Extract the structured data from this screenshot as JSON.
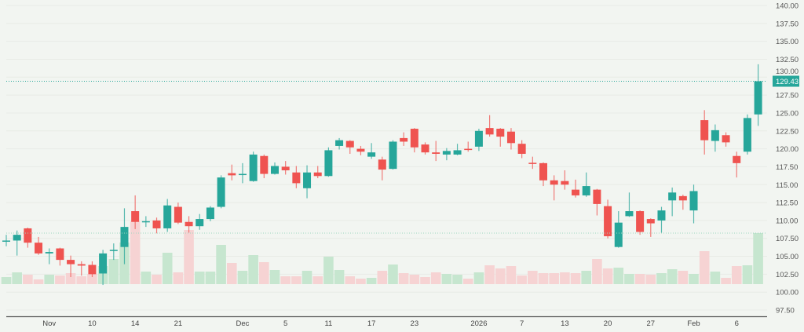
{
  "chart_data": {
    "type": "candlestick",
    "title": "",
    "xlabel": "",
    "ylabel": "",
    "ylim": [
      95.5,
      141
    ],
    "grid": true,
    "y_ticks": [
      "140.00",
      "137.50",
      "135.00",
      "132.50",
      "130.00",
      "127.50",
      "125.00",
      "122.50",
      "120.00",
      "117.50",
      "115.00",
      "112.50",
      "110.00",
      "107.50",
      "105.00",
      "102.50",
      "100.00",
      "97.50"
    ],
    "x_ticks": [
      {
        "label": "Nov",
        "index": 4
      },
      {
        "label": "10",
        "index": 8
      },
      {
        "label": "14",
        "index": 12
      },
      {
        "label": "21",
        "index": 16
      },
      {
        "label": "Dec",
        "index": 22
      },
      {
        "label": "5",
        "index": 26
      },
      {
        "label": "11",
        "index": 30
      },
      {
        "label": "17",
        "index": 34
      },
      {
        "label": "23",
        "index": 38
      },
      {
        "label": "2026",
        "index": 44
      },
      {
        "label": "7",
        "index": 48
      },
      {
        "label": "13",
        "index": 52
      },
      {
        "label": "20",
        "index": 56
      },
      {
        "label": "27",
        "index": 60
      },
      {
        "label": "Feb",
        "index": 64
      },
      {
        "label": "6",
        "index": 68
      }
    ],
    "ohlc_fields": [
      "open",
      "high",
      "low",
      "close"
    ],
    "candles": [
      [
        107.1,
        108.0,
        106.4,
        107.2
      ],
      [
        107.2,
        108.6,
        105.1,
        108.0
      ],
      [
        108.9,
        109.0,
        106.2,
        106.9
      ],
      [
        106.9,
        107.7,
        105.2,
        105.4
      ],
      [
        105.4,
        106.1,
        103.9,
        105.6
      ],
      [
        106.1,
        106.2,
        103.7,
        104.5
      ],
      [
        104.5,
        105.1,
        102.1,
        103.9
      ],
      [
        103.9,
        104.3,
        102.3,
        103.7
      ],
      [
        103.8,
        104.3,
        102.1,
        102.5
      ],
      [
        102.6,
        105.9,
        101.0,
        105.4
      ],
      [
        105.8,
        106.8,
        104.5,
        105.9
      ],
      [
        106.3,
        111.7,
        103.9,
        109.1
      ],
      [
        111.3,
        113.5,
        108.8,
        109.8
      ],
      [
        109.8,
        110.6,
        109.1,
        109.9
      ],
      [
        110.0,
        110.4,
        108.2,
        108.9
      ],
      [
        108.9,
        113.0,
        108.4,
        112.1
      ],
      [
        111.9,
        112.5,
        109.5,
        109.7
      ],
      [
        109.8,
        110.6,
        108.3,
        109.2
      ],
      [
        109.2,
        110.9,
        108.7,
        110.2
      ],
      [
        110.2,
        112.0,
        109.9,
        111.8
      ],
      [
        111.9,
        116.3,
        111.7,
        116.0
      ],
      [
        116.6,
        117.8,
        115.6,
        116.3
      ],
      [
        116.4,
        118.0,
        115.2,
        116.5
      ],
      [
        115.5,
        119.6,
        115.4,
        119.2
      ],
      [
        119.0,
        119.2,
        115.9,
        116.5
      ],
      [
        116.5,
        118.1,
        116.4,
        117.6
      ],
      [
        117.5,
        118.3,
        116.4,
        117.0
      ],
      [
        116.7,
        117.6,
        114.5,
        115.2
      ],
      [
        114.5,
        117.7,
        113.1,
        116.7
      ],
      [
        116.7,
        117.6,
        115.9,
        116.2
      ],
      [
        116.2,
        120.2,
        116.1,
        119.8
      ],
      [
        120.4,
        121.5,
        119.9,
        121.2
      ],
      [
        121.1,
        121.2,
        119.3,
        120.2
      ],
      [
        120.0,
        120.4,
        119.1,
        119.6
      ],
      [
        118.9,
        120.8,
        118.6,
        119.5
      ],
      [
        118.5,
        118.9,
        115.6,
        117.1
      ],
      [
        117.2,
        121.2,
        117.1,
        121.0
      ],
      [
        121.5,
        122.3,
        120.4,
        121.0
      ],
      [
        122.8,
        122.9,
        119.5,
        120.2
      ],
      [
        120.6,
        120.9,
        119.2,
        119.5
      ],
      [
        119.5,
        121.1,
        118.3,
        119.3
      ],
      [
        119.2,
        120.1,
        118.4,
        119.7
      ],
      [
        119.2,
        120.7,
        119.1,
        119.8
      ],
      [
        120.0,
        121.0,
        119.6,
        119.95
      ],
      [
        120.3,
        122.8,
        119.7,
        122.5
      ],
      [
        122.9,
        124.7,
        121.7,
        122.0
      ],
      [
        122.8,
        122.9,
        120.3,
        121.7
      ],
      [
        122.4,
        122.9,
        119.9,
        120.8
      ],
      [
        120.7,
        121.2,
        118.7,
        119.3
      ],
      [
        118.05,
        118.9,
        117.2,
        118.0
      ],
      [
        118.0,
        118.1,
        114.8,
        115.6
      ],
      [
        115.6,
        116.3,
        112.8,
        115.0
      ],
      [
        115.5,
        117.0,
        114.3,
        115.0
      ],
      [
        114.3,
        115.7,
        113.2,
        113.5
      ],
      [
        113.5,
        116.7,
        113.3,
        114.8
      ],
      [
        114.3,
        114.4,
        110.7,
        112.3
      ],
      [
        112.0,
        112.9,
        107.5,
        107.8
      ],
      [
        106.3,
        111.3,
        106.2,
        109.7
      ],
      [
        110.6,
        113.9,
        110.5,
        111.3
      ],
      [
        111.3,
        111.4,
        108.0,
        108.4
      ],
      [
        110.2,
        110.3,
        107.7,
        109.6
      ],
      [
        110.0,
        111.9,
        108.3,
        111.4
      ],
      [
        112.8,
        114.6,
        110.6,
        113.9
      ],
      [
        113.4,
        113.6,
        111.5,
        112.8
      ],
      [
        111.4,
        115.0,
        109.6,
        114.1
      ],
      [
        124.0,
        125.4,
        119.2,
        121.2
      ],
      [
        121.1,
        123.4,
        119.6,
        122.6
      ],
      [
        121.9,
        122.3,
        120.3,
        120.9
      ],
      [
        119.0,
        119.6,
        116.0,
        118.0
      ],
      [
        119.6,
        124.8,
        119.2,
        124.3
      ],
      [
        124.8,
        131.8,
        123.2,
        129.43
      ]
    ],
    "volume_relative": [
      9,
      15,
      12,
      6,
      12,
      11,
      14,
      10,
      13,
      23,
      32,
      53,
      80,
      16,
      12,
      40,
      15,
      69,
      16,
      16,
      50,
      27,
      17,
      37,
      28,
      18,
      10,
      10,
      17,
      10,
      35,
      18,
      10,
      7,
      8,
      17,
      25,
      14,
      12,
      9,
      15,
      13,
      12,
      7,
      15,
      24,
      20,
      23,
      11,
      17,
      14,
      14,
      15,
      14,
      17,
      32,
      20,
      21,
      13,
      13,
      12,
      14,
      19,
      17,
      13,
      42,
      16,
      8,
      23,
      24,
      65
    ],
    "last_price": 129.43,
    "last_price_label": "129.43",
    "colors": {
      "up": "#26a69a",
      "down": "#ef5350",
      "volume_up": "#c6e6cf",
      "volume_down": "#f6d3d3",
      "background": "#f2f5f1",
      "grid": "#e8ebe6"
    }
  }
}
